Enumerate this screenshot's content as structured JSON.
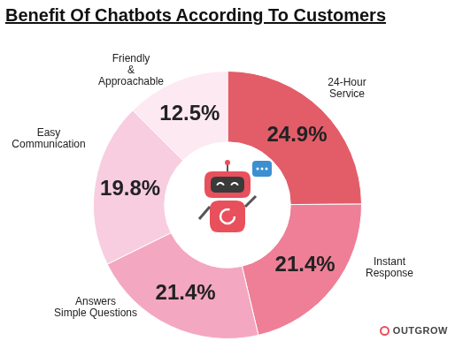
{
  "chart_data": {
    "type": "doughnut",
    "title": "Benefit Of Chatbots According To Customers",
    "categories": [
      "24-Hour\nService",
      "Instant\nResponse",
      "Answers\nSimple Questions",
      "Easy\nCommunication",
      "Friendly\n&\nApproachable"
    ],
    "values": [
      24.9,
      21.4,
      21.4,
      19.8,
      12.5
    ],
    "value_labels": [
      "24.9%",
      "21.4%",
      "21.4%",
      "19.8%",
      "12.5%"
    ],
    "colors": [
      "#e35d69",
      "#ee7f97",
      "#f4a7c0",
      "#f8cde0",
      "#fde9f2"
    ],
    "data_labels": true,
    "annotations": [
      "OUTGROW"
    ]
  }
}
